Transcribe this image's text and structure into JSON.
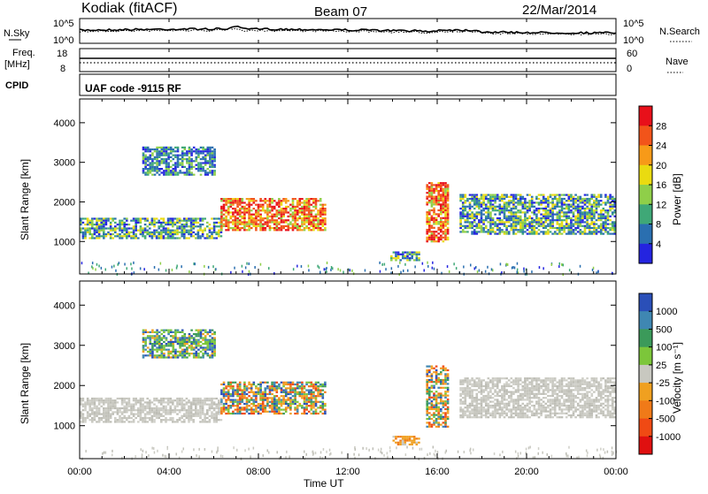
{
  "header": {
    "station": "Kodiak (fitACF)",
    "beam": "Beam 07",
    "date": "22/Mar/2014"
  },
  "noise_panel": {
    "left_label": "N.Sky",
    "right_label": "N.Search",
    "left_ticks": [
      "10^5",
      "10^0"
    ],
    "right_ticks": [
      "10^5",
      "10^0"
    ]
  },
  "freq_panel": {
    "left_label_1": "Freq.",
    "left_label_2": "[MHz]",
    "left_ticks": [
      "18",
      "8"
    ],
    "right_label": "Nave",
    "right_ticks": [
      "60",
      "0"
    ]
  },
  "cpid_panel": {
    "label": "CPID",
    "text": "UAF code -9115 RF"
  },
  "range_axis": {
    "label": "Slant Range [km]",
    "ticks": [
      "4000",
      "3000",
      "2000",
      "1000"
    ]
  },
  "time_axis": {
    "label": "Time UT",
    "ticks": [
      "00:00",
      "04:00",
      "08:00",
      "12:00",
      "16:00",
      "20:00",
      "00:00"
    ]
  },
  "power_colorbar": {
    "label": "Power [dB]",
    "ticks": [
      "28",
      "24",
      "20",
      "16",
      "12",
      "8",
      "4"
    ],
    "colors": [
      "#e8101a",
      "#f2541a",
      "#f79a18",
      "#eadb10",
      "#8fcf49",
      "#3fa877",
      "#2a6fb0",
      "#2424e0"
    ]
  },
  "velocity_colorbar": {
    "label": "Velocity [m s⁻¹]",
    "ticks": [
      "1000",
      "500",
      "100",
      "25",
      "-25",
      "-100",
      "-500",
      "-1000"
    ],
    "colors": [
      "#2a4fb8",
      "#3f87b2",
      "#3b9a5a",
      "#7cc63a",
      "#c8c8c0",
      "#f0a020",
      "#f07a18",
      "#f04a14",
      "#e01010"
    ]
  },
  "chart_data": {
    "type": "heatmap",
    "title": "Kodiak (fitACF)",
    "xlabel": "Time UT",
    "ylabel": "Slant Range [km]",
    "xlim": [
      0,
      24
    ],
    "ylim": [
      180,
      4600
    ],
    "xticks": [
      "00:00",
      "04:00",
      "08:00",
      "12:00",
      "16:00",
      "20:00",
      "00:00"
    ],
    "power_regions": [
      {
        "t0": 0.0,
        "t1": 6.3,
        "r0": 1100,
        "r1": 1600,
        "level": "medium"
      },
      {
        "t0": 2.8,
        "t1": 6.0,
        "r0": 2700,
        "r1": 3400,
        "level": "low"
      },
      {
        "t0": 6.3,
        "t1": 11.0,
        "r0": 1300,
        "r1": 2100,
        "level": "high"
      },
      {
        "t0": 13.9,
        "t1": 15.2,
        "r0": 550,
        "r1": 750,
        "level": "medium"
      },
      {
        "t0": 15.5,
        "t1": 16.5,
        "r0": 1000,
        "r1": 2500,
        "level": "high"
      },
      {
        "t0": 17.0,
        "t1": 24.0,
        "r0": 1200,
        "r1": 2200,
        "level": "medium"
      }
    ],
    "velocity_regions": [
      {
        "t0": 0.0,
        "t1": 6.3,
        "r0": 1100,
        "r1": 1700,
        "level": "ground"
      },
      {
        "t0": 2.8,
        "t1": 6.0,
        "r0": 2700,
        "r1": 3400,
        "level": "positive"
      },
      {
        "t0": 6.3,
        "t1": 11.0,
        "r0": 1300,
        "r1": 2100,
        "level": "mixed"
      },
      {
        "t0": 14.0,
        "t1": 15.2,
        "r0": 550,
        "r1": 750,
        "level": "negative"
      },
      {
        "t0": 15.5,
        "t1": 16.5,
        "r0": 1000,
        "r1": 2500,
        "level": "mixed"
      },
      {
        "t0": 17.0,
        "t1": 24.0,
        "r0": 1200,
        "r1": 2200,
        "level": "ground"
      }
    ]
  }
}
